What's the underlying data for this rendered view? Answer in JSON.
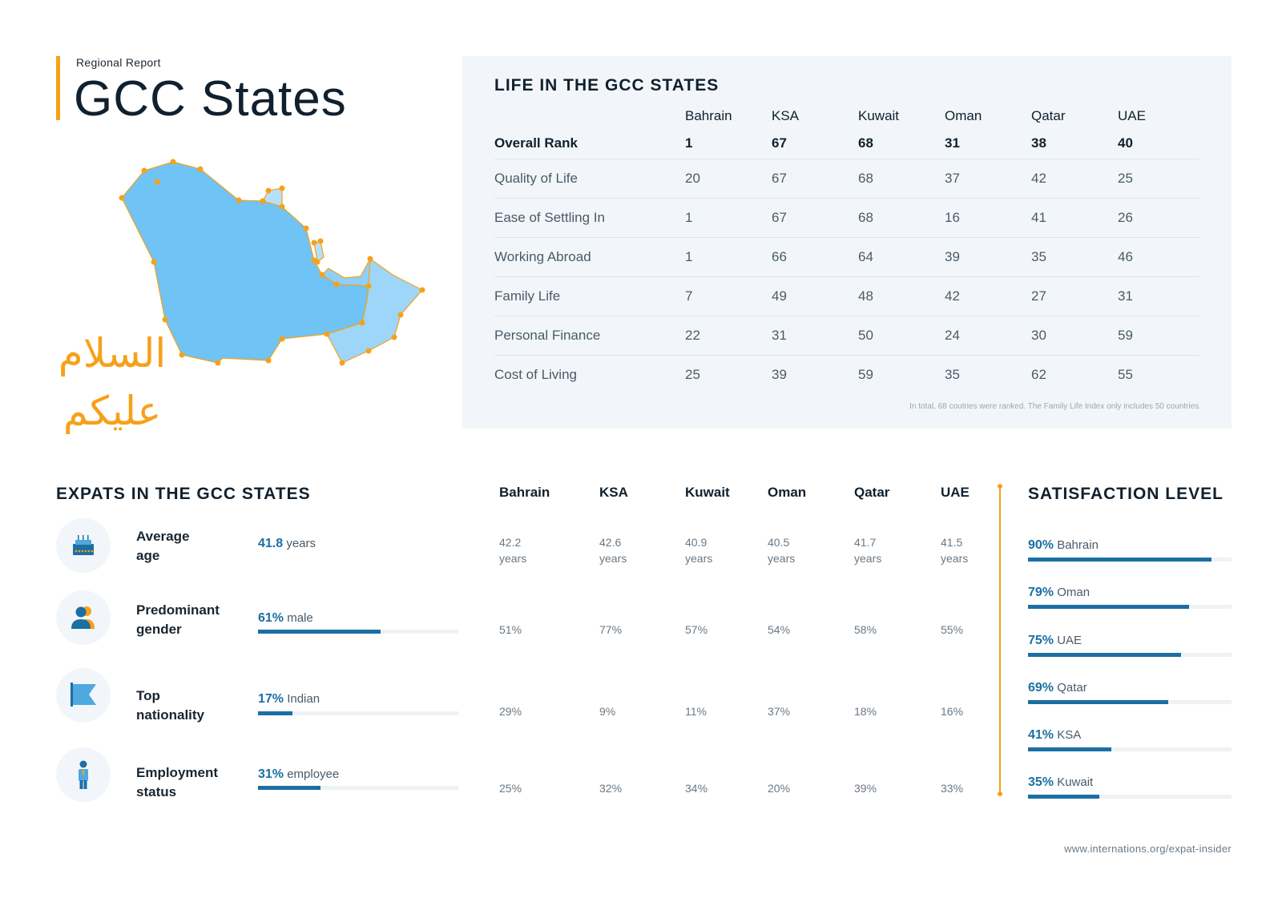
{
  "header": {
    "subtitle": "Regional Report",
    "title": "GCC States"
  },
  "greeting": {
    "line1": "السلام",
    "line2": "عليكم"
  },
  "life": {
    "title": "LIFE IN THE GCC STATES",
    "countries": [
      "Bahrain",
      "KSA",
      "Kuwait",
      "Oman",
      "Qatar",
      "UAE"
    ],
    "rows": [
      {
        "label": "Overall Rank",
        "values": [
          "1",
          "67",
          "68",
          "31",
          "38",
          "40"
        ]
      },
      {
        "label": "Quality of Life",
        "values": [
          "20",
          "67",
          "68",
          "37",
          "42",
          "25"
        ]
      },
      {
        "label": "Ease of Settling In",
        "values": [
          "1",
          "67",
          "68",
          "16",
          "41",
          "26"
        ]
      },
      {
        "label": "Working Abroad",
        "values": [
          "1",
          "66",
          "64",
          "39",
          "35",
          "46"
        ]
      },
      {
        "label": "Family Life",
        "values": [
          "7",
          "49",
          "48",
          "42",
          "27",
          "31"
        ]
      },
      {
        "label": "Personal Finance",
        "values": [
          "22",
          "31",
          "50",
          "24",
          "30",
          "59"
        ]
      },
      {
        "label": "Cost of Living",
        "values": [
          "25",
          "39",
          "59",
          "35",
          "62",
          "55"
        ]
      }
    ],
    "footnote": "In total, 68 coutries were ranked. The Family Life Index only includes 50 countries."
  },
  "expats": {
    "title": "EXPATS IN THE GCC STATES",
    "countries": [
      "Bahrain",
      "KSA",
      "Kuwait",
      "Oman",
      "Qatar",
      "UAE"
    ],
    "metrics": [
      {
        "label_line1": "Average",
        "label_line2": "age",
        "value": "41.8",
        "unit": "years",
        "bar_percent": null,
        "icon": "birthday-cake-icon",
        "country_values": [
          {
            "v": "42.2",
            "u": "years"
          },
          {
            "v": "42.6",
            "u": "years"
          },
          {
            "v": "40.9",
            "u": "years"
          },
          {
            "v": "40.5",
            "u": "years"
          },
          {
            "v": "41.7",
            "u": "years"
          },
          {
            "v": "41.5",
            "u": "years"
          }
        ]
      },
      {
        "label_line1": "Predominant",
        "label_line2": "gender",
        "value": "61%",
        "unit": "male",
        "bar_percent": 61,
        "icon": "people-icon",
        "country_values": [
          {
            "v": "51%"
          },
          {
            "v": "77%"
          },
          {
            "v": "57%"
          },
          {
            "v": "54%"
          },
          {
            "v": "58%"
          },
          {
            "v": "55%"
          }
        ]
      },
      {
        "label_line1": "Top",
        "label_line2": "nationality",
        "value": "17%",
        "unit": "Indian",
        "bar_percent": 17,
        "icon": "flag-icon",
        "country_values": [
          {
            "v": "29%"
          },
          {
            "v": "9%"
          },
          {
            "v": "11%"
          },
          {
            "v": "37%"
          },
          {
            "v": "18%"
          },
          {
            "v": "16%"
          }
        ]
      },
      {
        "label_line1": "Employment",
        "label_line2": "status",
        "value": "31%",
        "unit": "employee",
        "bar_percent": 31,
        "icon": "employee-icon",
        "country_values": [
          {
            "v": "25%"
          },
          {
            "v": "32%"
          },
          {
            "v": "34%"
          },
          {
            "v": "20%"
          },
          {
            "v": "39%"
          },
          {
            "v": "33%"
          }
        ]
      }
    ]
  },
  "satisfaction": {
    "title": "SATISFACTION LEVEL",
    "items": [
      {
        "pct": "90%",
        "country": "Bahrain",
        "value": 90
      },
      {
        "pct": "79%",
        "country": "Oman",
        "value": 79
      },
      {
        "pct": "75%",
        "country": "UAE",
        "value": 75
      },
      {
        "pct": "69%",
        "country": "Qatar",
        "value": 69
      },
      {
        "pct": "41%",
        "country": "KSA",
        "value": 41
      },
      {
        "pct": "35%",
        "country": "Kuwait",
        "value": 35
      }
    ]
  },
  "footer": {
    "url": "www.internations.org/expat-insider"
  },
  "colors": {
    "accent": "#f6a11a",
    "primary": "#1b6fa3",
    "map_fill": "#6fc3f5",
    "panel_bg": "#f2f6fa"
  }
}
